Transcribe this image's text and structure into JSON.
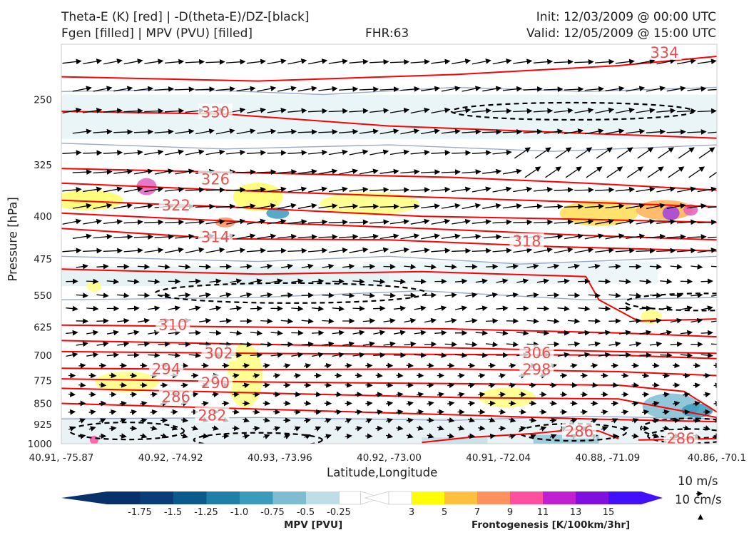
{
  "titles": {
    "left_line1": "Theta-E (K) [red] | -D(theta-E)/DZ-[black]",
    "left_line2": "Fgen [filled] | MPV (PVU) [filled]",
    "center": "FHR:63",
    "right_line1": "Init: 12/03/2009 @ 00:00 UTC",
    "right_line2": "Valid: 12/05/2009 @ 15:00 UTC"
  },
  "chart_data": {
    "type": "cross-section",
    "xlabel": "Latitude,Longitude",
    "ylabel": "Pressure [hPa]",
    "ylim": [
      1000,
      200
    ],
    "y_scale": "log-pressure",
    "y_ticks": [
      250,
      325,
      400,
      475,
      550,
      625,
      700,
      775,
      850,
      925,
      1000
    ],
    "x_ticks": [
      "40.91, -75.87",
      "40.92, -74.92",
      "40.93, -73.96",
      "40.92, -73.00",
      "40.91, -72.04",
      "40.88, -71.09",
      "40.86, -70.1"
    ],
    "theta_e_contours": {
      "color": "#ff0000",
      "labels": [
        {
          "value": "334",
          "x_frac": 0.92,
          "p": 207
        },
        {
          "value": "330",
          "x_frac": 0.235,
          "p": 263
        },
        {
          "value": "326",
          "x_frac": 0.235,
          "p": 345
        },
        {
          "value": "322",
          "x_frac": 0.175,
          "p": 383
        },
        {
          "value": "318",
          "x_frac": 0.71,
          "p": 443
        },
        {
          "value": "314",
          "x_frac": 0.235,
          "p": 435
        },
        {
          "value": "310",
          "x_frac": 0.17,
          "p": 620
        },
        {
          "value": "306",
          "x_frac": 0.725,
          "p": 694
        },
        {
          "value": "302",
          "x_frac": 0.24,
          "p": 695
        },
        {
          "value": "298",
          "x_frac": 0.725,
          "p": 742
        },
        {
          "value": "294",
          "x_frac": 0.16,
          "p": 741
        },
        {
          "value": "290",
          "x_frac": 0.235,
          "p": 783
        },
        {
          "value": "286",
          "x_frac": 0.175,
          "p": 828
        },
        {
          "value": "282",
          "x_frac": 0.23,
          "p": 893
        },
        {
          "value": "286",
          "x_frac": 0.79,
          "p": 952
        },
        {
          "value": "286",
          "x_frac": 0.945,
          "p": 980
        }
      ]
    },
    "mpv_colorbar": {
      "label": "MPV [PVU]",
      "ticks": [
        "-1.75",
        "-1.5",
        "-1.25",
        "-1.0",
        "-0.75",
        "-0.5",
        "-0.25"
      ],
      "colors": [
        "#08306b",
        "#0b3c7a",
        "#0c5a8c",
        "#1f7fa6",
        "#3a9bbd",
        "#7fbcd2",
        "#bfdde6",
        "#ffffff"
      ]
    },
    "fgen_colorbar": {
      "label": "Frontogenesis [K/100km/3hr]",
      "ticks": [
        "3",
        "5",
        "7",
        "9",
        "11",
        "13",
        "15"
      ],
      "colors": [
        "#ffffff",
        "#ffff00",
        "#ffc040",
        "#ff9060",
        "#ff50a0",
        "#c020d0",
        "#8010e0",
        "#4010ff"
      ]
    },
    "wind_scale": {
      "horizontal": "10 m/s",
      "vertical": "10 cm/s"
    },
    "colors": {
      "theta_e": "#ff0000",
      "dthetae_dz": "#000000",
      "mpv_line": "#9aaac8",
      "vector": "#000000"
    }
  }
}
